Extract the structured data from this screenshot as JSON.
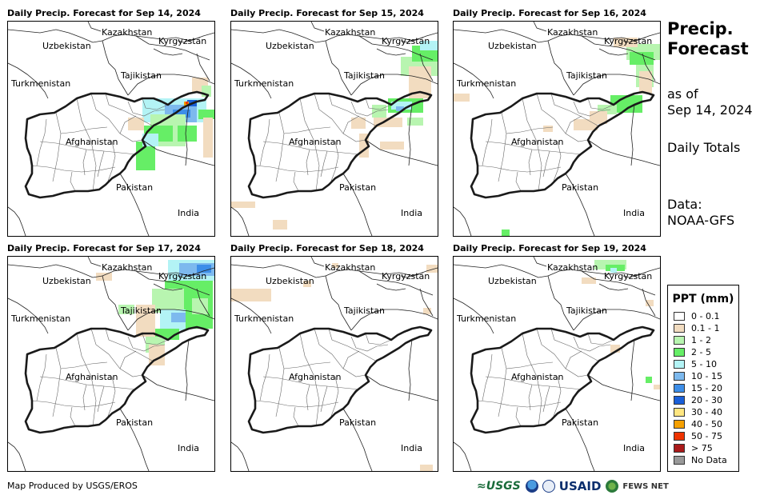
{
  "panels": [
    {
      "title": "Daily Precip. Forecast for Sep 14, 2024",
      "date": "Sep 14, 2024"
    },
    {
      "title": "Daily Precip. Forecast for Sep 15, 2024",
      "date": "Sep 15, 2024"
    },
    {
      "title": "Daily Precip. Forecast for Sep 16, 2024",
      "date": "Sep 16, 2024"
    },
    {
      "title": "Daily Precip. Forecast for Sep 17, 2024",
      "date": "Sep 17, 2024"
    },
    {
      "title": "Daily Precip. Forecast for Sep 18, 2024",
      "date": "Sep 18, 2024"
    },
    {
      "title": "Daily Precip. Forecast for Sep 19, 2024",
      "date": "Sep 19, 2024"
    }
  ],
  "map_labels": {
    "kazakhstan": "Kazakhstan",
    "kyrgyzstan": "Kyrgyzstan",
    "uzbekistan": "Uzbekistan",
    "tajikistan": "Tajikistan",
    "turkmenistan": "Turkmenistan",
    "afghanistan": "Afghanistan",
    "pakistan": "Pakistan",
    "india": "India"
  },
  "side": {
    "title_line1": "Precip.",
    "title_line2": "Forecast",
    "asof_line1": "as of",
    "asof_line2": "Sep 14, 2024",
    "totals": "Daily Totals",
    "data_line1": "Data:",
    "data_line2": "NOAA-GFS"
  },
  "legend": {
    "title": "PPT (mm)",
    "items": [
      {
        "label": "0 - 0.1",
        "color": "#ffffff"
      },
      {
        "label": "0.1 - 1",
        "color": "#f2dcc0"
      },
      {
        "label": "1 - 2",
        "color": "#b8f5b0"
      },
      {
        "label": "2 - 5",
        "color": "#66ee66"
      },
      {
        "label": "5 - 10",
        "color": "#b3f3f5"
      },
      {
        "label": "10 - 15",
        "color": "#7db9ee"
      },
      {
        "label": "15 - 20",
        "color": "#3d8ee8"
      },
      {
        "label": "20 - 30",
        "color": "#1a5fd8"
      },
      {
        "label": "30 - 40",
        "color": "#ffe680"
      },
      {
        "label": "40 - 50",
        "color": "#f5a000"
      },
      {
        "label": "50 - 75",
        "color": "#ee3300"
      },
      {
        "label": "> 75",
        "color": "#aa1a1a"
      },
      {
        "label": "No Data",
        "color": "#999999"
      }
    ]
  },
  "footer": {
    "credit": "Map Produced by USGS/EROS",
    "logo_usgs": "≈USGS",
    "logo_usaid": "USAID",
    "logo_fews": "FEWS NET"
  }
}
